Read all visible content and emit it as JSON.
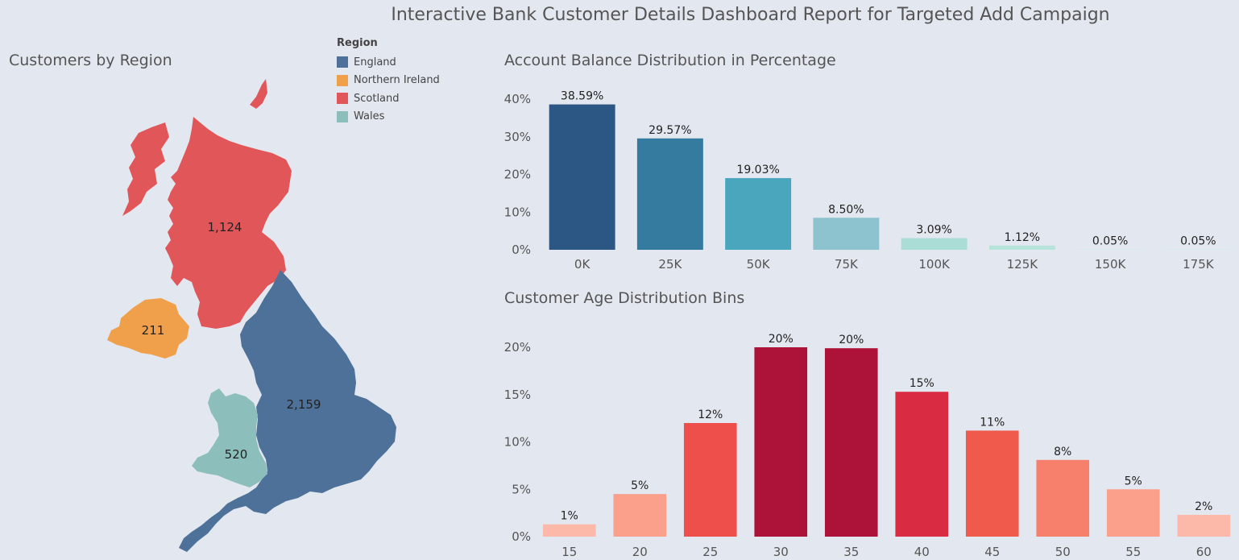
{
  "title": "Interactive Bank Customer Details Dashboard Report for Targeted Add Campaign",
  "map": {
    "title": "Customers by Region",
    "legend_title": "Region",
    "regions": [
      {
        "name": "England",
        "color": "#4e7199",
        "value": "2,159"
      },
      {
        "name": "Northern Ireland",
        "color": "#f0a04b",
        "value": "211"
      },
      {
        "name": "Scotland",
        "color": "#e15759",
        "value": "1,124"
      },
      {
        "name": "Wales",
        "color": "#8cbfbb",
        "value": "520"
      }
    ]
  },
  "chart_data": [
    {
      "type": "bar",
      "title": "Account Balance Distribution in Percentage",
      "categories": [
        "0K",
        "25K",
        "50K",
        "75K",
        "100K",
        "125K",
        "150K",
        "175K"
      ],
      "values": [
        38.59,
        29.57,
        19.03,
        8.5,
        3.09,
        1.12,
        0.05,
        0.05
      ],
      "data_labels": [
        "38.59%",
        "29.57%",
        "19.03%",
        "8.50%",
        "3.09%",
        "1.12%",
        "0.05%",
        "0.05%"
      ],
      "colors": [
        "#2c5784",
        "#357b9f",
        "#4aa6bc",
        "#8cc3ce",
        "#a9ddd6",
        "#b6e3da",
        "#c9ece6",
        "#c9ece6"
      ],
      "yticks": [
        "0%",
        "10%",
        "20%",
        "30%",
        "40%"
      ],
      "ylim": [
        0,
        40
      ],
      "grid": false
    },
    {
      "type": "bar",
      "title": "Customer Age Distribution Bins",
      "categories": [
        "15",
        "20",
        "25",
        "30",
        "35",
        "40",
        "45",
        "50",
        "55",
        "60"
      ],
      "values": [
        1.3,
        4.5,
        12.0,
        20.0,
        19.9,
        15.3,
        11.2,
        8.1,
        5.0,
        2.3
      ],
      "data_labels": [
        "1%",
        "5%",
        "12%",
        "20%",
        "20%",
        "15%",
        "11%",
        "8%",
        "5%",
        "2%"
      ],
      "colors": [
        "#fcb8a8",
        "#fba08b",
        "#ee4f4a",
        "#ad1238",
        "#ad1238",
        "#d92b42",
        "#f05a4d",
        "#f7806c",
        "#fba08b",
        "#fcb8a8"
      ],
      "yticks": [
        "0%",
        "5%",
        "10%",
        "15%",
        "20%"
      ],
      "ylim": [
        0,
        20
      ],
      "grid": false
    }
  ]
}
